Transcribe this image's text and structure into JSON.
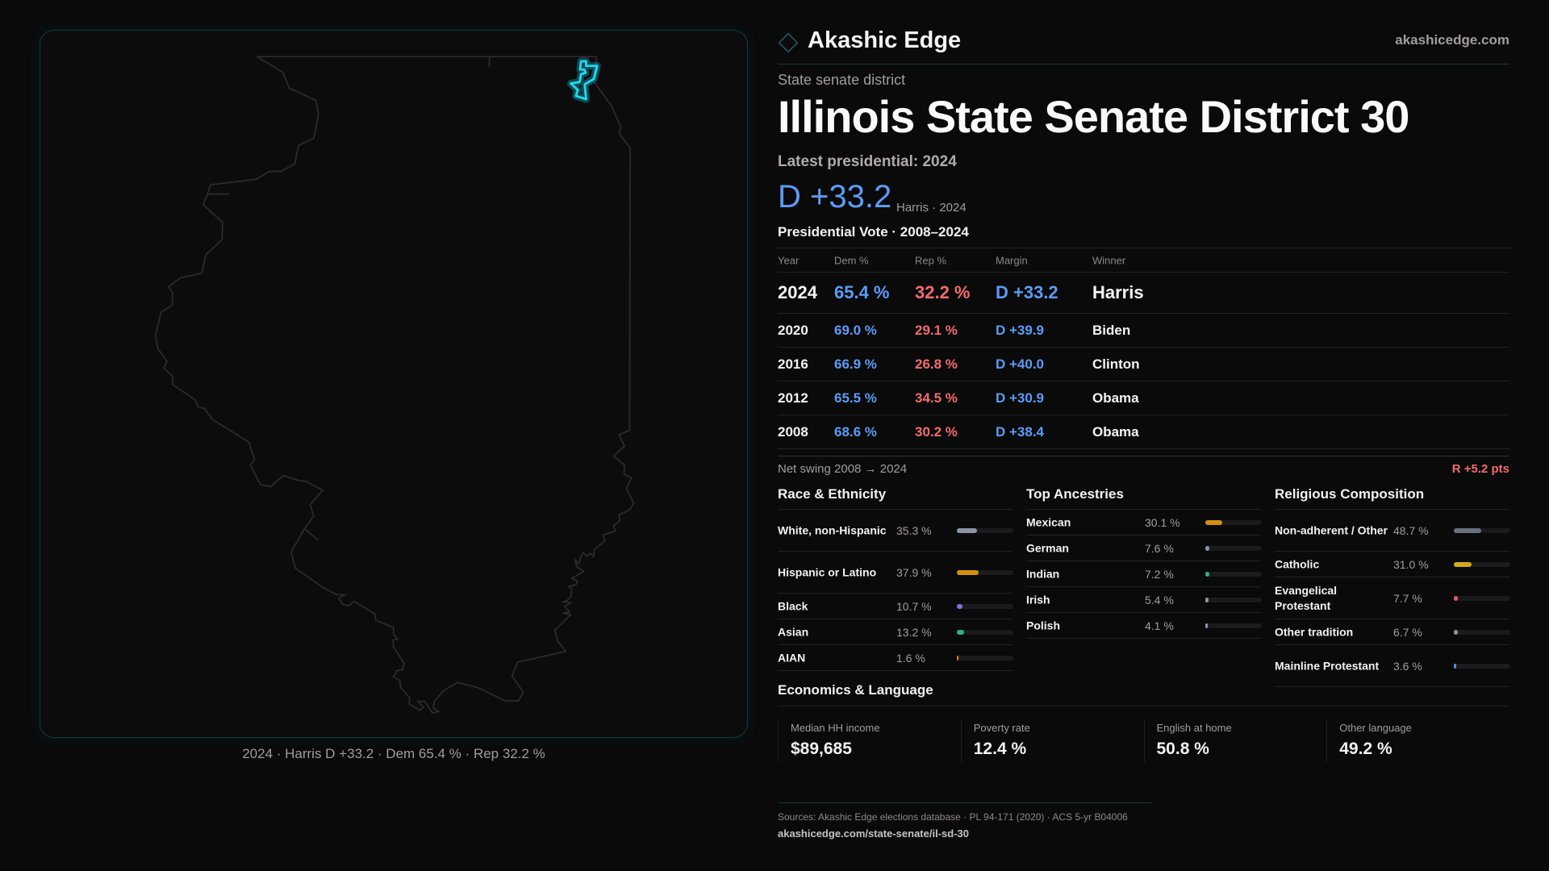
{
  "brand": {
    "name": "Akashic Edge",
    "site": "akashicedge.com"
  },
  "map": {
    "caption": "2024 · Harris D +33.2 · Dem 65.4 % · Rep 32.2 %",
    "highlight_color": "#1fd8f0"
  },
  "district": {
    "kicker": "State senate district",
    "title": "Illinois State Senate District 30",
    "latest": "Latest presidential: 2024",
    "margin": "D +33.2",
    "margin_sub": "Harris · 2024"
  },
  "presidential": {
    "title": "Presidential Vote · 2008–2024",
    "headers": [
      "Year",
      "Dem %",
      "Rep %",
      "Margin",
      "Winner"
    ],
    "rows": [
      [
        "2024",
        "65.4 %",
        "32.2 %",
        "D +33.2",
        "Harris"
      ],
      [
        "2020",
        "69.0 %",
        "29.1 %",
        "D +39.9",
        "Biden"
      ],
      [
        "2016",
        "66.9 %",
        "26.8 %",
        "D +40.0",
        "Clinton"
      ],
      [
        "2012",
        "65.5 %",
        "34.5 %",
        "D +30.9",
        "Obama"
      ],
      [
        "2008",
        "68.6 %",
        "30.2 %",
        "D +38.4",
        "Obama"
      ]
    ],
    "swing_label": "Net swing 2008 → 2024",
    "swing_value": "R +5.2 pts"
  },
  "demographics": [
    {
      "title": "Race & Ethnicity",
      "items": [
        {
          "label": "White, non-Hispanic",
          "value": "35.3 %",
          "pct": 35.3,
          "color": "#8a94a6"
        },
        {
          "label": "Hispanic or Latino",
          "value": "37.9 %",
          "pct": 37.9,
          "color": "#d4900e"
        },
        {
          "label": "Black",
          "value": "10.7 %",
          "pct": 10.7,
          "color": "#8b6fd6"
        },
        {
          "label": "Asian",
          "value": "13.2 %",
          "pct": 13.2,
          "color": "#2bb585"
        },
        {
          "label": "AIAN",
          "value": "1.6 %",
          "pct": 1.6,
          "color": "#d4800e"
        }
      ]
    },
    {
      "title": "Top Ancestries",
      "items": [
        {
          "label": "Mexican",
          "value": "30.1 %",
          "pct": 30.1,
          "color": "#d4900e"
        },
        {
          "label": "German",
          "value": "7.6 %",
          "pct": 7.6,
          "color": "#8a94a6"
        },
        {
          "label": "Indian",
          "value": "7.2 %",
          "pct": 7.2,
          "color": "#2bb585"
        },
        {
          "label": "Irish",
          "value": "5.4 %",
          "pct": 5.4,
          "color": "#8a94a6"
        },
        {
          "label": "Polish",
          "value": "4.1 %",
          "pct": 4.1,
          "color": "#8a94a6"
        }
      ]
    },
    {
      "title": "Religious Composition",
      "items": [
        {
          "label": "Non-adherent / Other",
          "value": "48.7 %",
          "pct": 48.7,
          "color": "#6b7080"
        },
        {
          "label": "Catholic",
          "value": "31.0 %",
          "pct": 31.0,
          "color": "#d4a81e"
        },
        {
          "label": "Evangelical Protestant",
          "value": "7.7 %",
          "pct": 7.7,
          "color": "#e05a5a"
        },
        {
          "label": "Other tradition",
          "value": "6.7 %",
          "pct": 6.7,
          "color": "#8a94a6"
        },
        {
          "label": "Mainline Protestant",
          "value": "3.6 %",
          "pct": 3.6,
          "color": "#4a90e2"
        }
      ]
    }
  ],
  "economics": {
    "title": "Economics & Language",
    "cards": [
      {
        "label": "Median HH income",
        "value": "$89,685"
      },
      {
        "label": "Poverty rate",
        "value": "12.4 %"
      },
      {
        "label": "English at home",
        "value": "50.8 %"
      },
      {
        "label": "Other language",
        "value": "49.2 %"
      }
    ]
  },
  "footer": {
    "sources": "Sources: Akashic Edge elections database · PL 94-171 (2020) · ACS 5-yr B04006",
    "url": "akashicedge.com/state-senate/il-sd-30"
  }
}
